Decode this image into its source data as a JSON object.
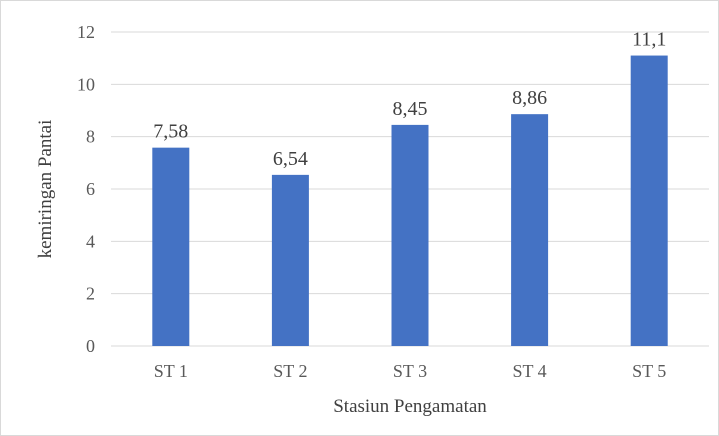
{
  "chart_data": {
    "type": "bar",
    "categories": [
      "ST 1",
      "ST 2",
      "ST 3",
      "ST 4",
      "ST 5"
    ],
    "values": [
      7.58,
      6.54,
      8.45,
      8.86,
      11.1
    ],
    "data_labels": [
      "7,58",
      "6,54",
      "8,45",
      "8,86",
      "11,1"
    ],
    "xlabel": "Stasiun Pengamatan",
    "ylabel": "kemiringan Pantai",
    "ylim": [
      0,
      12
    ],
    "yticks": [
      0,
      2,
      4,
      6,
      8,
      10,
      12
    ],
    "grid": true,
    "legend": "none",
    "bar_color": "#4472c4",
    "grid_color": "#d9d9d9"
  }
}
